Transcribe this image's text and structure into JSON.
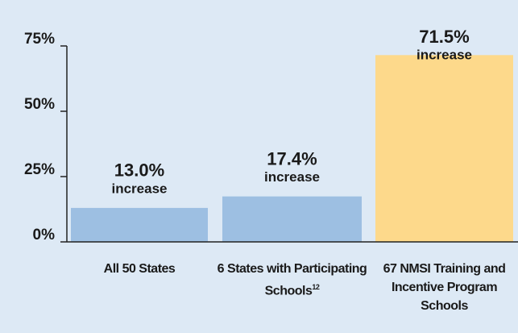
{
  "chart_data": {
    "type": "bar",
    "categories": [
      "All 50 States",
      "6 States with Participating Schools",
      "67 NMSI Training and Incentive Program Schools"
    ],
    "category_notes": [
      null,
      "12",
      null
    ],
    "values": [
      13.0,
      17.4,
      71.5
    ],
    "value_labels": [
      "13.0%",
      "17.4%",
      "71.5%"
    ],
    "annotation": "increase",
    "colors": [
      "#9dbfe2",
      "#9dbfe2",
      "#fdd98b"
    ],
    "ylim": [
      0,
      75
    ],
    "yticks": [
      {
        "value": 0,
        "label": "0%"
      },
      {
        "value": 25,
        "label": "25%"
      },
      {
        "value": 50,
        "label": "50%"
      },
      {
        "value": 75,
        "label": "75%"
      }
    ]
  }
}
